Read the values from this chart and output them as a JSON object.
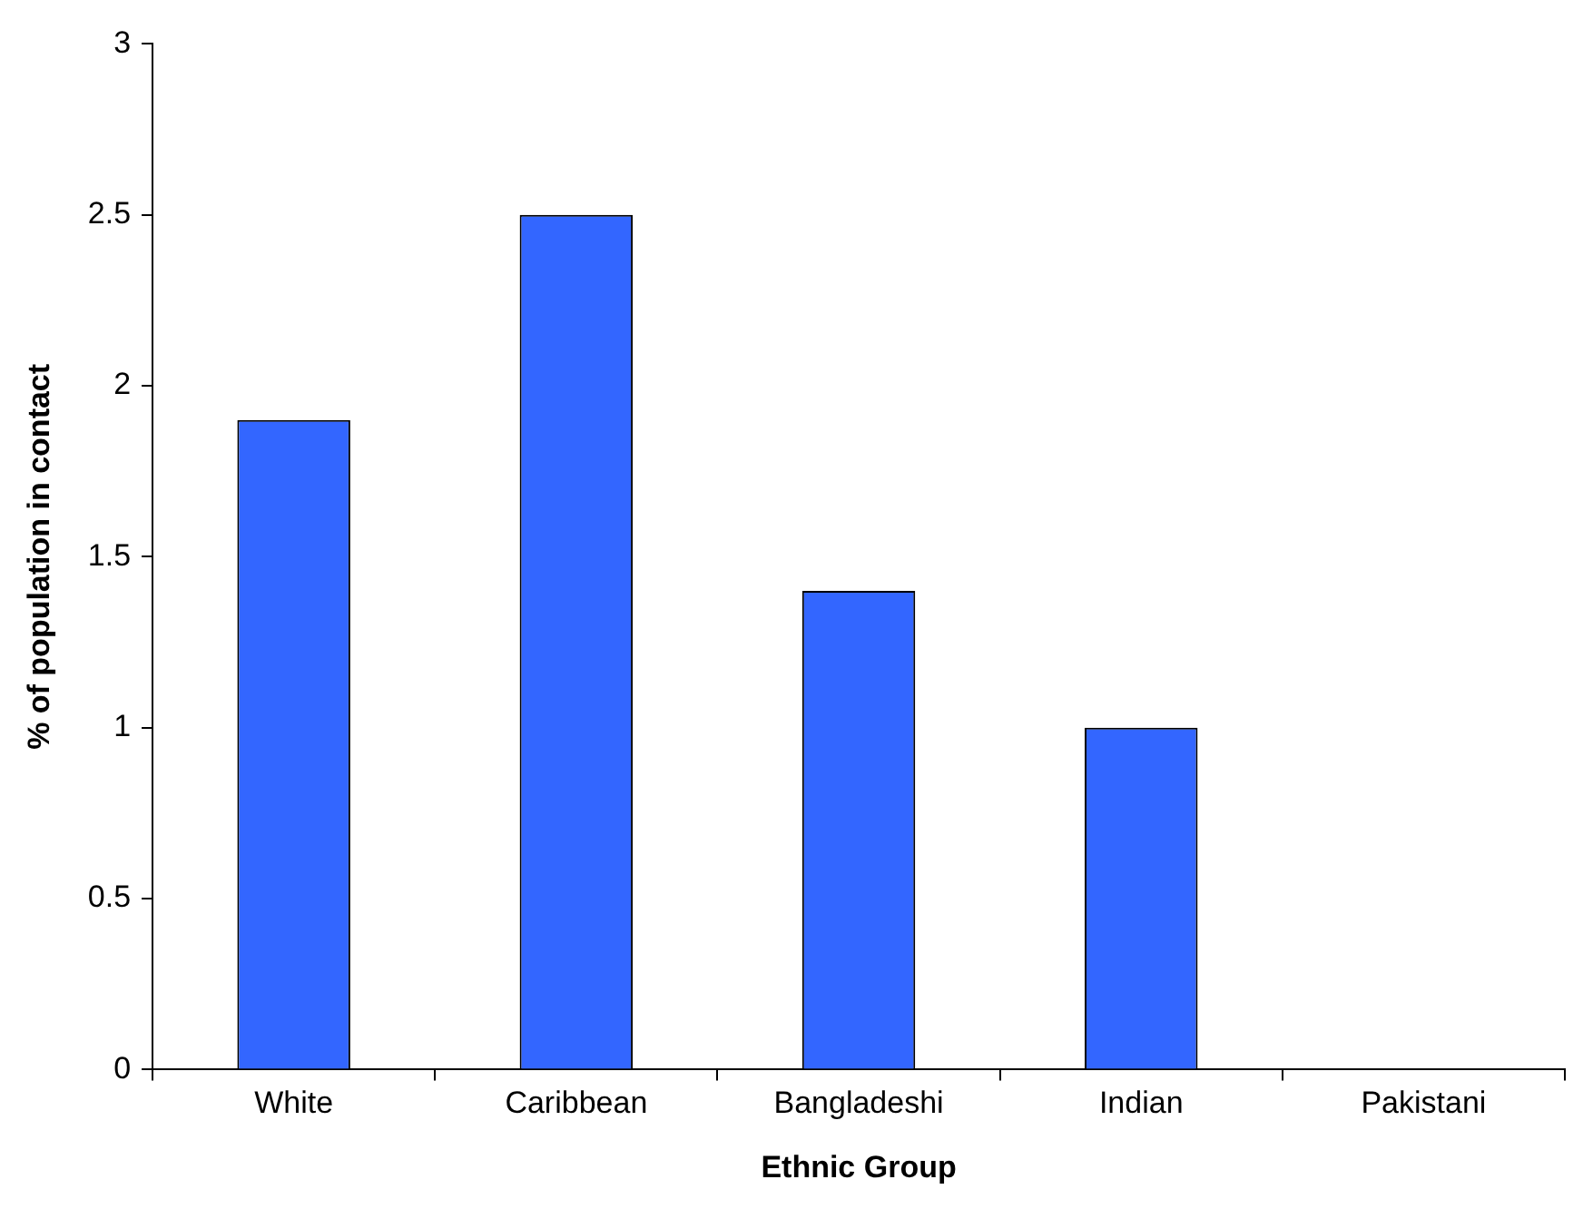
{
  "chart_data": {
    "type": "bar",
    "xlabel": "Ethnic Group",
    "ylabel": "% of population in contact",
    "categories": [
      "White",
      "Caribbean",
      "Bangladeshi",
      "Indian",
      "Pakistani"
    ],
    "values": [
      1.9,
      2.5,
      1.4,
      1.0,
      0
    ],
    "color": "#3366ff",
    "ylim": [
      0,
      3
    ],
    "yticks": [
      0,
      0.5,
      1,
      1.5,
      2,
      2.5,
      3
    ],
    "grid": false,
    "legend": false
  }
}
